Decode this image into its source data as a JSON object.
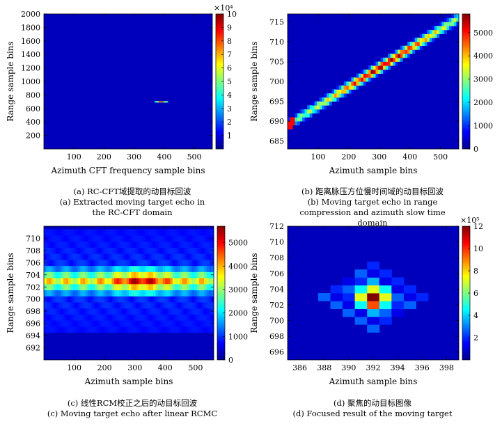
{
  "colormap": [
    "#00008f",
    "#0000ff",
    "#00ffff",
    "#ffff00",
    "#ff0000",
    "#800000"
  ],
  "chart_data": [
    {
      "type": "heatmap",
      "id": "a",
      "caption_cn": "(a) RC-CFT域提取的动目标回波",
      "caption_en": "(a) Extracted moving target echo in the RC-CFT domain",
      "xlabel": "Azimuth CFT frequency sample bins",
      "ylabel": "Range sample bins",
      "xlim": [
        0,
        560
      ],
      "ylim": [
        2000,
        0
      ],
      "xticks": [
        "100",
        "200",
        "300",
        "400",
        "500"
      ],
      "yticks": [
        "200",
        "400",
        "600",
        "800",
        "1000",
        "1200",
        "1400",
        "1600",
        "1800",
        "2000"
      ],
      "colorbar": {
        "min": 0,
        "max": 10,
        "ticks": [
          "1",
          "2",
          "3",
          "4",
          "5",
          "6",
          "7",
          "8",
          "9",
          "10"
        ],
        "exponent": "×10⁴"
      },
      "data": {
        "peak_x": 390,
        "peak_y": 700,
        "peak_value": 100000
      }
    },
    {
      "type": "heatmap",
      "id": "b",
      "caption_cn": "(b) 距离脉压方位慢时间域的动目标回波",
      "caption_en": "(b) Moving target echo in range compression and azimuth slow time domain",
      "xlabel": "Azimuth sample bins",
      "ylabel": "Range sample bins",
      "xlim": [
        0,
        560
      ],
      "ylim": [
        717,
        683
      ],
      "xticks": [
        "100",
        "200",
        "300",
        "400",
        "500"
      ],
      "yticks": [
        "685",
        "690",
        "695",
        "700",
        "705",
        "710",
        "715"
      ],
      "colorbar": {
        "min": 0,
        "max": 5800,
        "ticks": [
          "0",
          "1000",
          "2000",
          "3000",
          "4000",
          "5000"
        ]
      },
      "data": {
        "line_start": [
          0,
          689
        ],
        "line_end": [
          560,
          716
        ],
        "peak_x": 310,
        "peak_value": 5500
      }
    },
    {
      "type": "heatmap",
      "id": "c",
      "caption_cn": "(c) 线性RCM校正之后的动目标回波",
      "caption_en": "(c) Moving target echo after linear RCMC",
      "xlabel": "Azimuth sample bins",
      "ylabel": "Range sample bins",
      "xlim": [
        0,
        560
      ],
      "ylim": [
        712,
        690
      ],
      "xticks": [
        "100",
        "200",
        "300",
        "400",
        "500"
      ],
      "yticks": [
        "692",
        "694",
        "696",
        "698",
        "700",
        "702",
        "704",
        "706",
        "708",
        "710"
      ],
      "colorbar": {
        "min": 0,
        "max": 5700,
        "ticks": [
          "0",
          "1000",
          "2000",
          "3000",
          "4000",
          "5000"
        ]
      },
      "data": {
        "focus_row": 703,
        "peak_x": 320,
        "peak_value": 5400
      }
    },
    {
      "type": "heatmap",
      "id": "d",
      "caption_cn": "(d) 聚焦的动目标图像",
      "caption_en": "(d) Focused result of the moving target",
      "xlabel": "Azimuth sample bins",
      "ylabel": "Range sample bins",
      "xlim": [
        385,
        399
      ],
      "ylim": [
        712,
        695
      ],
      "xticks": [
        "386",
        "388",
        "390",
        "392",
        "394",
        "396",
        "398"
      ],
      "yticks": [
        "696",
        "698",
        "700",
        "702",
        "704",
        "706",
        "708",
        "710",
        "712"
      ],
      "colorbar": {
        "min": 0,
        "max": 12,
        "ticks": [
          "2",
          "4",
          "6",
          "8",
          "10",
          "12"
        ],
        "exponent": "×10⁵"
      },
      "data": {
        "peak_x": 392,
        "peak_y": 703,
        "peak_value": 1200000
      }
    }
  ]
}
